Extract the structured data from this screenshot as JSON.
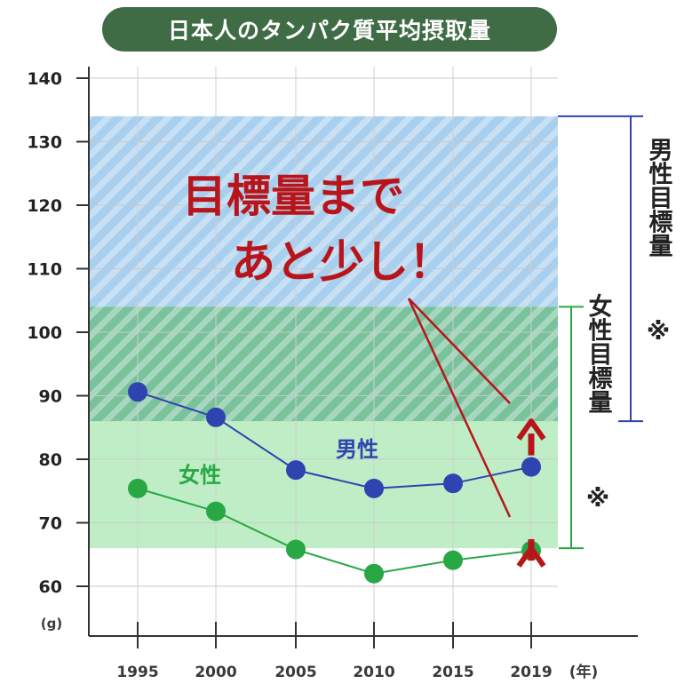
{
  "header": {
    "title": "日本人のタンパク質平均摂取量"
  },
  "chart_data": {
    "type": "line",
    "x": [
      "1995",
      "2000",
      "2005",
      "2010",
      "2015",
      "2019"
    ],
    "x_suffix_label": "(年)",
    "ylabel": "(g)",
    "ylim": [
      60,
      140
    ],
    "yticks": [
      60,
      70,
      80,
      90,
      100,
      110,
      120,
      130,
      140
    ],
    "series": [
      {
        "name": "男性",
        "values": [
          90.6,
          86.6,
          78.3,
          75.4,
          76.2,
          78.8
        ],
        "color": "#2f44b0"
      },
      {
        "name": "女性",
        "values": [
          75.4,
          71.8,
          65.8,
          62.0,
          64.1,
          65.6
        ],
        "color": "#28a845"
      }
    ],
    "target_bands": [
      {
        "name": "男性目標量",
        "mark": "※",
        "range": [
          86,
          134
        ],
        "color": "#2f44b0",
        "fill": "#a9cfee"
      },
      {
        "name": "女性目標量",
        "mark": "※",
        "range": [
          66,
          104
        ],
        "color": "#28a845",
        "fill": "#bfeec6"
      }
    ],
    "annotation": {
      "lines": [
        "目標量まで",
        "あと少し！"
      ],
      "color": "#b8151b"
    }
  }
}
